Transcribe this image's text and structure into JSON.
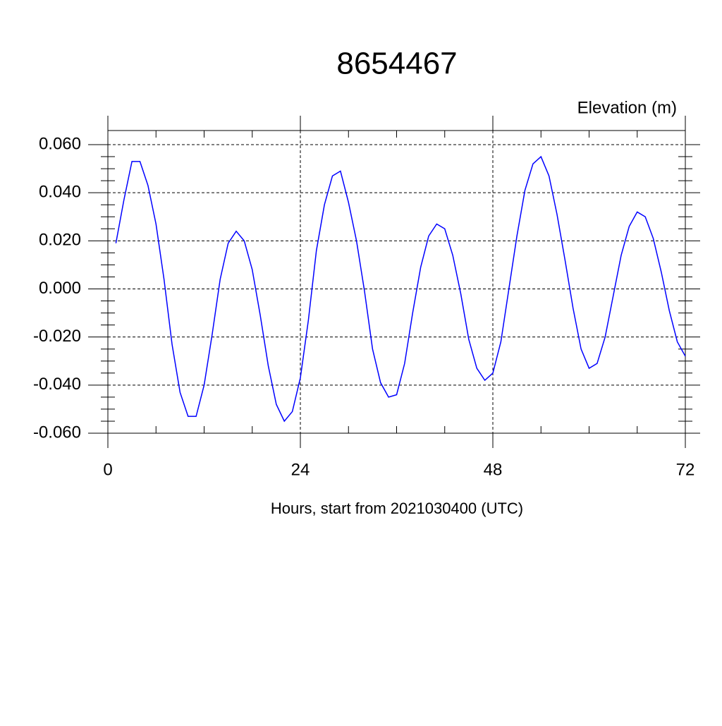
{
  "chart_data": {
    "type": "line",
    "title": "8654467",
    "ylabel": "Elevation (m)",
    "xlabel": "Hours, start from 2021030400 (UTC)",
    "x": [
      1,
      2,
      3,
      4,
      5,
      6,
      7,
      8,
      9,
      10,
      11,
      12,
      13,
      14,
      15,
      16,
      17,
      18,
      19,
      20,
      21,
      22,
      23,
      24,
      25,
      26,
      27,
      28,
      29,
      30,
      31,
      32,
      33,
      34,
      35,
      36,
      37,
      38,
      39,
      40,
      41,
      42,
      43,
      44,
      45,
      46,
      47,
      48,
      49,
      50,
      51,
      52,
      53,
      54,
      55,
      56,
      57,
      58,
      59,
      60,
      61,
      62,
      63,
      64,
      65,
      66,
      67,
      68,
      69,
      70,
      71,
      72
    ],
    "series": [
      {
        "color": "#0000ff",
        "values": [
          0.019,
          0.037,
          0.053,
          0.053,
          0.043,
          0.027,
          0.004,
          -0.023,
          -0.043,
          -0.053,
          -0.053,
          -0.04,
          -0.019,
          0.004,
          0.019,
          0.024,
          0.02,
          0.008,
          -0.011,
          -0.032,
          -0.048,
          -0.055,
          -0.051,
          -0.037,
          -0.013,
          0.016,
          0.035,
          0.047,
          0.049,
          0.036,
          0.02,
          -0.001,
          -0.025,
          -0.039,
          -0.045,
          -0.044,
          -0.031,
          -0.01,
          0.009,
          0.022,
          0.027,
          0.025,
          0.014,
          -0.002,
          -0.021,
          -0.033,
          -0.038,
          -0.035,
          -0.022,
          0.0,
          0.022,
          0.041,
          0.052,
          0.055,
          0.047,
          0.031,
          0.012,
          -0.008,
          -0.025,
          -0.033,
          -0.031,
          -0.02,
          -0.003,
          0.014,
          0.026,
          0.032,
          0.03,
          0.021,
          0.007,
          -0.009,
          -0.022,
          -0.028
        ]
      }
    ],
    "xlim": [
      0,
      72
    ],
    "xticks": [
      0,
      24,
      48,
      72
    ],
    "ylim": [
      -0.06,
      0.06
    ],
    "yticks": [
      {
        "value": -0.06,
        "label": "-0.060"
      },
      {
        "value": -0.04,
        "label": "-0.040"
      },
      {
        "value": -0.02,
        "label": "-0.020"
      },
      {
        "value": 0,
        "label": "0.000"
      },
      {
        "value": 0.02,
        "label": "0.020"
      },
      {
        "value": 0.04,
        "label": "0.040"
      },
      {
        "value": 0.06,
        "label": "0.060"
      }
    ],
    "grid": true
  }
}
